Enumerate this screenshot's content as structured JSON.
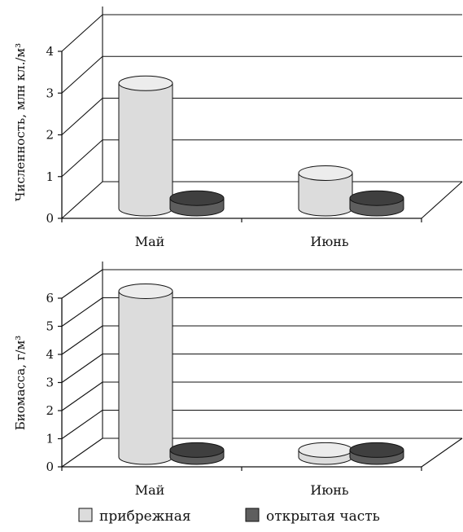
{
  "colors": {
    "pribrezhnaya": "#dcdcdc",
    "pribrezhnaya_top": "#ececec",
    "otkrytaya": "#5e5e5e",
    "otkrytaya_top": "#3f3f3f",
    "outline": "#111111",
    "grid": "#111111"
  },
  "legend": {
    "items": [
      {
        "label": "прибрежная",
        "color_key": "pribrezhnaya"
      },
      {
        "label": "открытая часть",
        "color_key": "otkrytaya"
      }
    ],
    "placement": "bottom"
  },
  "chart_data": [
    {
      "type": "bar",
      "style": "3d-cylinder",
      "categories": [
        "Май",
        "Июнь"
      ],
      "ylabel": "Численность, млн кл./м³",
      "ylim": [
        0,
        4
      ],
      "yticks": [
        "0",
        "1",
        "2",
        "3",
        "4"
      ],
      "grid": true,
      "series": [
        {
          "name": "прибрежная",
          "values": [
            3.0,
            0.85
          ]
        },
        {
          "name": "открытая часть",
          "values": [
            0.25,
            0.25
          ]
        }
      ]
    },
    {
      "type": "bar",
      "style": "3d-cylinder",
      "categories": [
        "Май",
        "Июнь"
      ],
      "ylabel": "Биомасса, г/м³",
      "ylim": [
        0,
        6
      ],
      "yticks": [
        "0",
        "1",
        "2",
        "3",
        "4",
        "5",
        "6"
      ],
      "grid": true,
      "series": [
        {
          "name": "прибрежная",
          "values": [
            5.9,
            0.25
          ]
        },
        {
          "name": "открытая часть",
          "values": [
            0.25,
            0.25
          ]
        }
      ]
    }
  ]
}
